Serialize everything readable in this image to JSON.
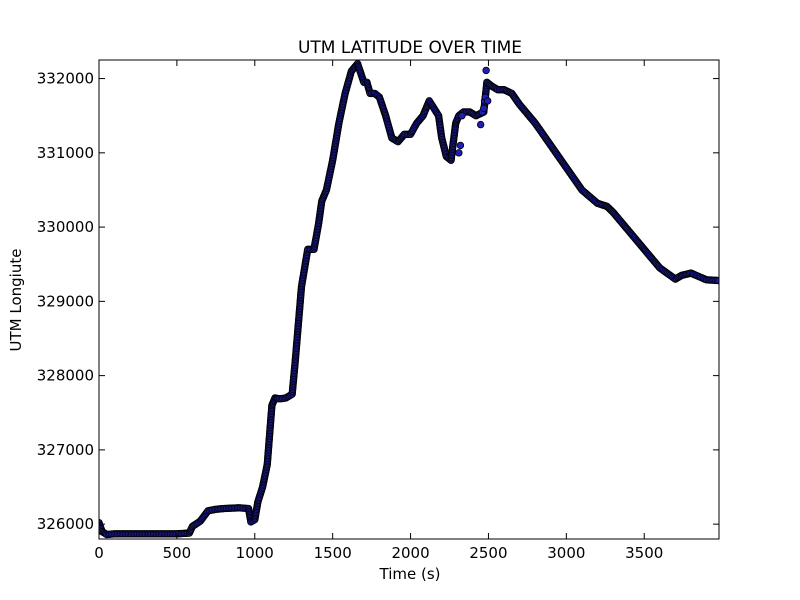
{
  "chart_data": {
    "type": "scatter",
    "title": "UTM LATITUDE OVER TIME",
    "xlabel": "Time (s)",
    "ylabel": "UTM Longiute",
    "xlim": [
      0,
      3980
    ],
    "ylim": [
      325800,
      332250
    ],
    "xticks": [
      0,
      500,
      1000,
      1500,
      2000,
      2500,
      3000,
      3500
    ],
    "xtick_labels": [
      "0",
      "500",
      "1000",
      "1500",
      "2000",
      "2500",
      "3000",
      "3500"
    ],
    "yticks": [
      326000,
      327000,
      328000,
      329000,
      330000,
      331000,
      332000
    ],
    "ytick_labels": [
      "326000",
      "327000",
      "328000",
      "329000",
      "330000",
      "331000",
      "332000"
    ],
    "grid": false,
    "marker_face_color": "#1f1fb4",
    "marker_edge_color": "#000000",
    "series": [
      {
        "x": [
          0,
          20,
          50,
          100,
          200,
          300,
          400,
          500,
          580,
          600,
          650,
          700,
          750,
          800,
          900,
          960,
          975,
          1000,
          1020,
          1050,
          1080,
          1110,
          1130,
          1150,
          1170,
          1200,
          1240,
          1260,
          1280,
          1300,
          1340,
          1380,
          1410,
          1430,
          1460,
          1500,
          1540,
          1580,
          1620,
          1660,
          1700,
          1720,
          1740,
          1770,
          1800,
          1840,
          1880,
          1920,
          1960,
          2000,
          2040,
          2080,
          2120,
          2150,
          2180,
          2200,
          2230,
          2260,
          2290,
          2310,
          2340,
          2380,
          2420,
          2470,
          2490,
          2520,
          2560,
          2600,
          2650,
          2700,
          2800,
          2900,
          3000,
          3100,
          3200,
          3260,
          3300,
          3400,
          3500,
          3600,
          3700,
          3740,
          3800,
          3900,
          3980
        ],
        "y": [
          326020,
          325900,
          325860,
          325870,
          325870,
          325870,
          325870,
          325870,
          325880,
          325970,
          326040,
          326180,
          326200,
          326210,
          326220,
          326210,
          326030,
          326060,
          326300,
          326500,
          326800,
          327600,
          327700,
          327690,
          327690,
          327700,
          327750,
          328200,
          328700,
          329200,
          329700,
          329700,
          330050,
          330350,
          330500,
          330900,
          331400,
          331800,
          332100,
          332200,
          331950,
          331950,
          331800,
          331800,
          331750,
          331500,
          331200,
          331150,
          331250,
          331250,
          331400,
          331500,
          331700,
          331600,
          331500,
          331200,
          330950,
          330900,
          331400,
          331500,
          331550,
          331550,
          331500,
          331550,
          331950,
          331900,
          331850,
          331850,
          331800,
          331650,
          331400,
          331100,
          330800,
          330500,
          330320,
          330280,
          330200,
          329950,
          329700,
          329450,
          329300,
          329350,
          329380,
          329290,
          329280
        ]
      }
    ],
    "outliers": {
      "x": [
        2310,
        2320,
        2330,
        2450,
        2460,
        2470,
        2475,
        2480,
        2485,
        2495
      ],
      "y": [
        331000,
        331100,
        331500,
        331380,
        331550,
        331600,
        331700,
        331750,
        332110,
        331700
      ]
    }
  }
}
